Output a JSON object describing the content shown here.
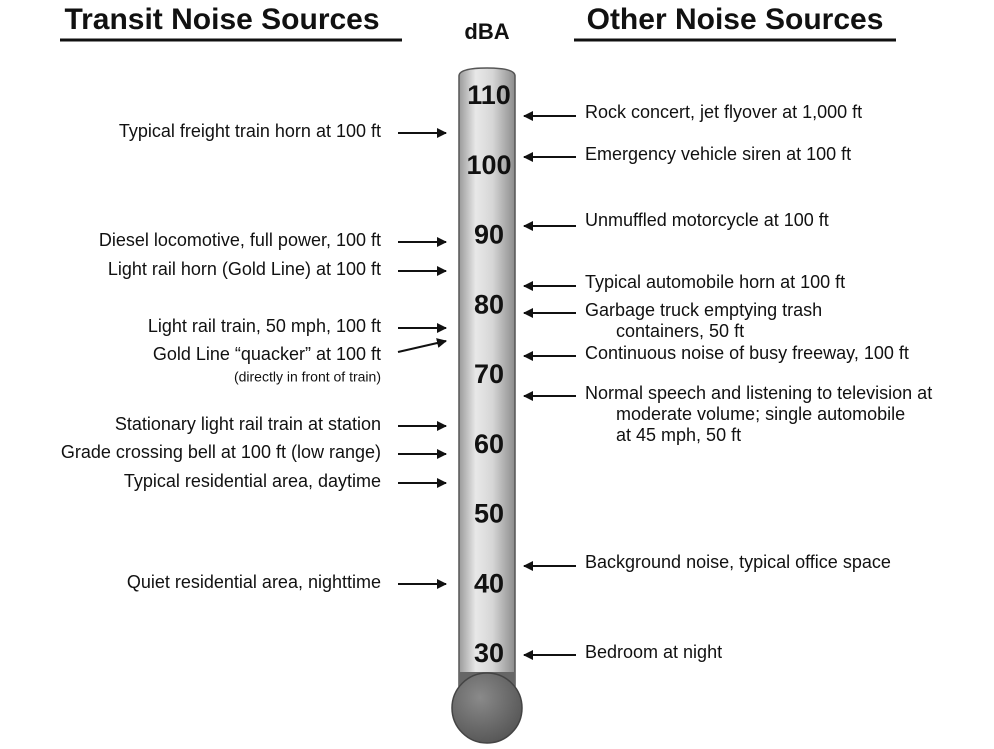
{
  "header": {
    "left_title": "Transit Noise Sources",
    "center_title": "dBA",
    "right_title": "Other Noise Sources"
  },
  "scale": {
    "ticks": [
      110,
      100,
      90,
      80,
      70,
      60,
      50,
      40,
      30
    ]
  },
  "left_sources": [
    {
      "label": "Typical freight train horn at 100 ft"
    },
    {
      "label": "Diesel locomotive, full power, 100 ft"
    },
    {
      "label": "Light rail horn (Gold Line) at 100 ft"
    },
    {
      "label": "Light rail train, 50 mph, 100 ft"
    },
    {
      "label": "Gold Line “quacker” at 100 ft",
      "note": "(directly in front of train)"
    },
    {
      "label": "Stationary light rail train at station"
    },
    {
      "label": "Grade crossing bell at 100 ft (low range)"
    },
    {
      "label": "Typical residential area, daytime"
    },
    {
      "label": "Quiet residential area, nighttime"
    }
  ],
  "right_sources": [
    {
      "lines": [
        "Rock concert, jet flyover at 1,000 ft"
      ]
    },
    {
      "lines": [
        "Emergency vehicle siren at 100 ft"
      ]
    },
    {
      "lines": [
        "Unmuffled motorcycle at 100 ft"
      ]
    },
    {
      "lines": [
        "Typical automobile horn at 100 ft"
      ]
    },
    {
      "lines": [
        "Garbage truck emptying trash",
        "containers, 50 ft"
      ]
    },
    {
      "lines": [
        "Continuous noise of busy freeway, 100 ft"
      ]
    },
    {
      "lines": [
        "Normal speech and listening to television at",
        "moderate volume; single automobile",
        "at 45 mph, 50 ft"
      ]
    },
    {
      "lines": [
        "Background noise, typical office space"
      ]
    },
    {
      "lines": [
        "Bedroom at night"
      ]
    }
  ]
}
